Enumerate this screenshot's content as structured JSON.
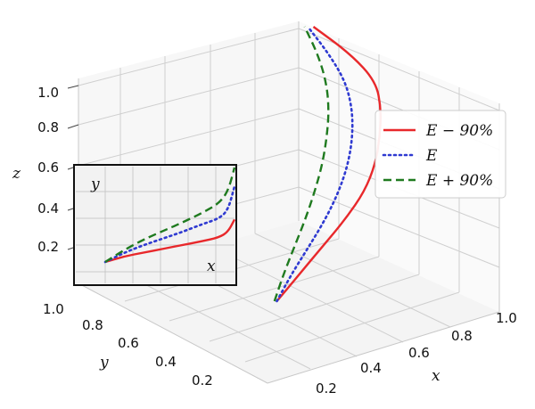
{
  "chart_data": {
    "type": "line",
    "dimensions": "3d",
    "axes": {
      "x": {
        "label": "x",
        "ticks": [
          "0.2",
          "0.4",
          "0.6",
          "0.8",
          "1.0"
        ]
      },
      "y": {
        "label": "y",
        "ticks": [
          "0.2",
          "0.4",
          "0.6",
          "0.8",
          "1.0"
        ]
      },
      "z": {
        "label": "z",
        "ticks": [
          "0.2",
          "0.4",
          "0.6",
          "0.8",
          "1.0"
        ]
      }
    },
    "grid": true,
    "legend_position": "right",
    "series": [
      {
        "name": "E − 90%",
        "color": "#e8282b",
        "line_style": "solid",
        "z": [
          0.0,
          0.1,
          0.2,
          0.3,
          0.4,
          0.5,
          0.6,
          0.7,
          0.8,
          0.9,
          1.0
        ],
        "x": [
          0.05,
          0.3,
          0.55,
          0.8,
          1.0,
          1.1,
          1.12,
          1.1,
          1.0,
          0.65,
          0.15
        ]
      },
      {
        "name": "E",
        "color": "#2f3ad1",
        "line_style": "dotted",
        "z": [
          0.0,
          0.1,
          0.2,
          0.3,
          0.4,
          0.5,
          0.6,
          0.7,
          0.8,
          0.9,
          1.0
        ],
        "x": [
          0.05,
          0.2,
          0.38,
          0.55,
          0.68,
          0.76,
          0.78,
          0.74,
          0.62,
          0.38,
          0.08
        ]
      },
      {
        "name": "E + 90%",
        "color": "#1f7a1f",
        "line_style": "dashed",
        "z": [
          0.0,
          0.1,
          0.2,
          0.3,
          0.4,
          0.5,
          0.6,
          0.7,
          0.8,
          0.9,
          1.0
        ],
        "x": [
          0.02,
          0.1,
          0.2,
          0.3,
          0.38,
          0.44,
          0.46,
          0.45,
          0.38,
          0.24,
          0.04
        ]
      }
    ],
    "inset": {
      "xlabel": "x",
      "ylabel": "y",
      "series": [
        {
          "name": "E − 90%",
          "x": [
            0.0,
            0.15,
            0.3,
            0.45,
            0.6,
            0.75,
            0.88,
            0.95,
            1.0
          ],
          "y": [
            0.0,
            0.06,
            0.1,
            0.14,
            0.18,
            0.22,
            0.26,
            0.32,
            0.45
          ]
        },
        {
          "name": "E",
          "x": [
            0.0,
            0.15,
            0.3,
            0.45,
            0.6,
            0.75,
            0.88,
            0.95,
            1.0
          ],
          "y": [
            0.0,
            0.1,
            0.18,
            0.25,
            0.32,
            0.4,
            0.46,
            0.55,
            0.8
          ]
        },
        {
          "name": "E + 90%",
          "x": [
            0.0,
            0.15,
            0.3,
            0.45,
            0.6,
            0.75,
            0.88,
            0.95,
            1.0
          ],
          "y": [
            0.0,
            0.13,
            0.24,
            0.33,
            0.42,
            0.52,
            0.62,
            0.75,
            1.0
          ]
        }
      ]
    }
  }
}
